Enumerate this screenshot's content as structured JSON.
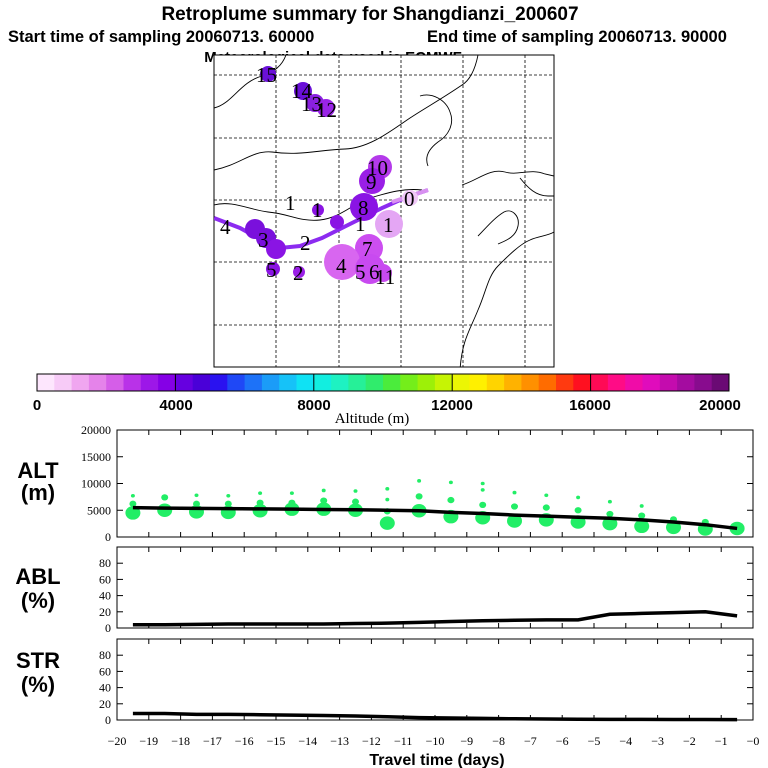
{
  "title": {
    "line1": "Retroplume summary for Shangdianzi_200607",
    "line2_start": "Start time of sampling 20060713. 60000",
    "line2_end": "End time of sampling 20060713. 90000",
    "line3": "Meteorological data used is ECMWF"
  },
  "colorbar": {
    "label": "Altitude (m)",
    "tick_labels": [
      "0",
      "4000",
      "8000",
      "12000",
      "16000",
      "20000"
    ],
    "colors": [
      "#fde6fd",
      "#f7cbf7",
      "#f0a6f0",
      "#e583ea",
      "#d55ee8",
      "#b932e8",
      "#9d17e8",
      "#8500e6",
      "#6600e0",
      "#4a00d8",
      "#2a12f0",
      "#1f48f6",
      "#1d72f8",
      "#1b9cf8",
      "#16c2f8",
      "#0fe2f4",
      "#12eee0",
      "#1ef2c2",
      "#26f098",
      "#30ec6c",
      "#4bec3c",
      "#74ee1a",
      "#9df008",
      "#c6f404",
      "#ecf604",
      "#fff000",
      "#ffd400",
      "#ffb200",
      "#ff9000",
      "#ff6c00",
      "#ff3a10",
      "#ff1020",
      "#ff0a55",
      "#ff0c86",
      "#f00ca8",
      "#e00cbc",
      "#c40cae",
      "#a40ca0",
      "#880c8e",
      "#6a0a74"
    ]
  },
  "map": {
    "cluster_labels": [
      "15",
      "14",
      "13",
      "12",
      "10",
      "9",
      "8",
      "1",
      "1",
      "1",
      "4",
      "3",
      "2",
      "5",
      "2",
      "7",
      "4",
      "6",
      "5",
      "11",
      "0",
      "1"
    ]
  },
  "chart_data": [
    {
      "type": "line",
      "panel": "ALT",
      "ylabel": "ALT (m)",
      "ylim": [
        0,
        20000
      ],
      "yticks": [
        "0",
        "5000",
        "10000",
        "15000",
        "20000"
      ],
      "x": [
        -19.5,
        -18.5,
        -17.5,
        -16.5,
        -15.5,
        -14.5,
        -13.5,
        -12.5,
        -11.5,
        -10.5,
        -9.5,
        -8.5,
        -7.5,
        -6.5,
        -5.5,
        -4.5,
        -3.5,
        -2.5,
        -1.5,
        -0.5
      ],
      "series": [
        {
          "name": "mean altitude",
          "values": [
            5500,
            5400,
            5350,
            5300,
            5250,
            5200,
            5150,
            5100,
            5000,
            4900,
            4600,
            4400,
            4100,
            3900,
            3700,
            3500,
            3200,
            2800,
            2300,
            1600
          ]
        }
      ],
      "cluster_altitudes": [
        [
          4500,
          6200,
          7700
        ],
        [
          5000,
          7400
        ],
        [
          4700,
          6200,
          7800
        ],
        [
          4600,
          6200,
          7700
        ],
        [
          4900,
          6400,
          8200
        ],
        [
          5200,
          6400,
          8200
        ],
        [
          5200,
          6800,
          8700
        ],
        [
          5000,
          6600,
          8600
        ],
        [
          2600,
          4800,
          7000,
          9000
        ],
        [
          4900,
          7600,
          10500
        ],
        [
          3800,
          6900,
          10200
        ],
        [
          3600,
          6000,
          8800,
          10000
        ],
        [
          3000,
          5700,
          8300
        ],
        [
          3200,
          5500,
          7800
        ],
        [
          2800,
          5000,
          7400
        ],
        [
          2500,
          4300,
          6600
        ],
        [
          2000,
          4000,
          5800
        ],
        [
          1800,
          3300
        ],
        [
          1500,
          2800
        ],
        [
          1600
        ]
      ],
      "marker_color": "#22ee66"
    },
    {
      "type": "line",
      "panel": "ABL",
      "ylabel": "ABL (%)",
      "ylim": [
        0,
        100
      ],
      "yticks": [
        "0",
        "20",
        "40",
        "60",
        "80"
      ],
      "x": [
        -19.5,
        -18.5,
        -17.5,
        -16.5,
        -15.5,
        -14.5,
        -13.5,
        -12.5,
        -11.5,
        -10.5,
        -9.5,
        -8.5,
        -7.5,
        -6.5,
        -5.5,
        -4.5,
        -3.5,
        -2.5,
        -1.5,
        -0.5
      ],
      "series": [
        {
          "name": "ABL fraction",
          "values": [
            4,
            4,
            4.5,
            5,
            5,
            5,
            5,
            5.5,
            6,
            7,
            8,
            9,
            9.5,
            10,
            10,
            17,
            18,
            19,
            20,
            15
          ]
        }
      ]
    },
    {
      "type": "line",
      "panel": "STR",
      "ylabel": "STR (%)",
      "ylim": [
        0,
        100
      ],
      "yticks": [
        "0",
        "20",
        "40",
        "60",
        "80"
      ],
      "xlabel": "Travel time (days)",
      "xlim": [
        -20,
        0
      ],
      "xtick_labels": [
        "−20",
        "−19",
        "−18",
        "−17",
        "−16",
        "−15",
        "−14",
        "−13",
        "−12",
        "−11",
        "−10",
        "−9",
        "−8",
        "−7",
        "−6",
        "−5",
        "−4",
        "−3",
        "−2",
        "−1",
        "−0"
      ],
      "x": [
        -19.5,
        -18.5,
        -17.5,
        -16.5,
        -15.5,
        -14.5,
        -13.5,
        -12.5,
        -11.5,
        -10.5,
        -9.5,
        -8.5,
        -7.5,
        -6.5,
        -5.5,
        -4.5,
        -3.5,
        -2.5,
        -1.5,
        -0.5
      ],
      "series": [
        {
          "name": "stratospheric fraction",
          "values": [
            8,
            8,
            7,
            7,
            6.5,
            6,
            5.5,
            5,
            4,
            3,
            2.5,
            2,
            1.5,
            1.2,
            1,
            0.8,
            0.8,
            0.6,
            0.6,
            0.5
          ]
        }
      ]
    }
  ]
}
